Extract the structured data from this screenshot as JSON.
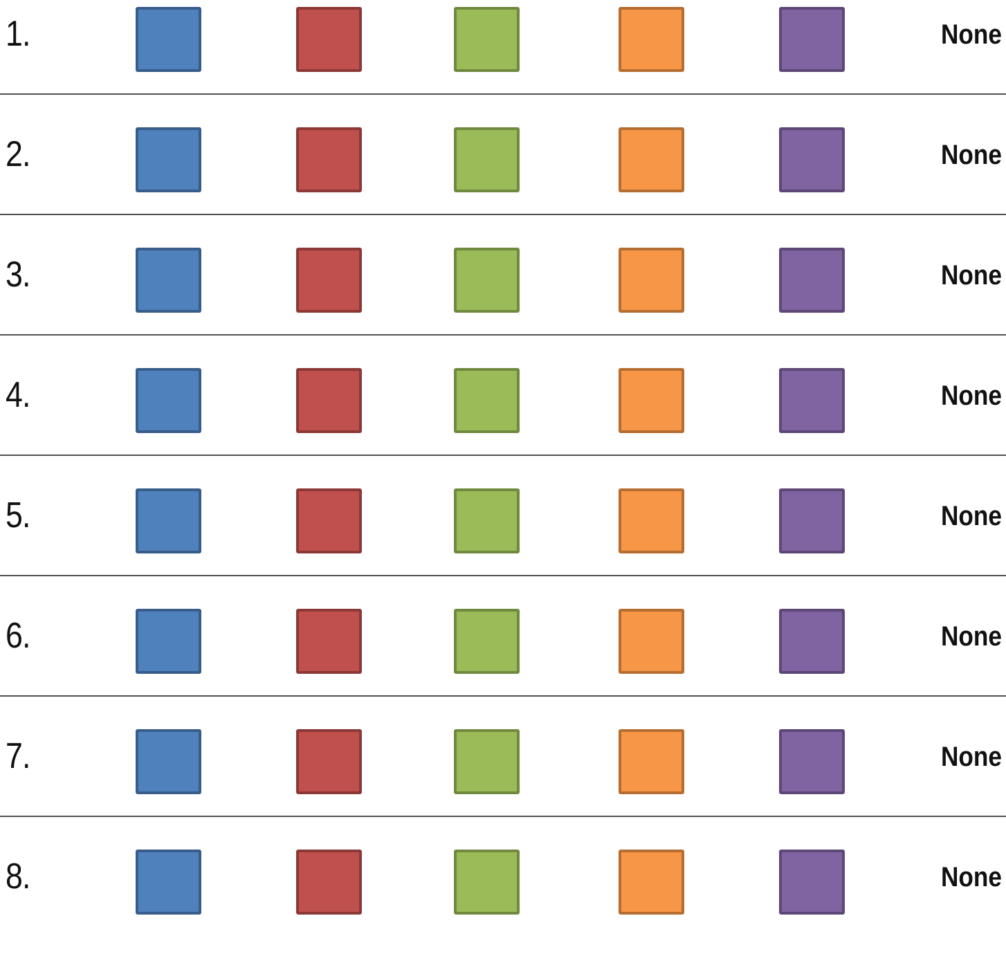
{
  "rows": [
    {
      "number": "1.",
      "none_label": "None"
    },
    {
      "number": "2.",
      "none_label": "None"
    },
    {
      "number": "3.",
      "none_label": "None"
    },
    {
      "number": "4.",
      "none_label": "None"
    },
    {
      "number": "5.",
      "none_label": "None"
    },
    {
      "number": "6.",
      "none_label": "None"
    },
    {
      "number": "7.",
      "none_label": "None"
    },
    {
      "number": "8.",
      "none_label": "None"
    }
  ],
  "swatches": [
    {
      "name": "blue",
      "fill": "#4F81BD",
      "border": "#385D8A"
    },
    {
      "name": "red",
      "fill": "#C0504D",
      "border": "#8C3836"
    },
    {
      "name": "green",
      "fill": "#9BBB59",
      "border": "#71893F"
    },
    {
      "name": "orange",
      "fill": "#F79646",
      "border": "#B66D31"
    },
    {
      "name": "purple",
      "fill": "#8064A2",
      "border": "#5C4776"
    }
  ]
}
